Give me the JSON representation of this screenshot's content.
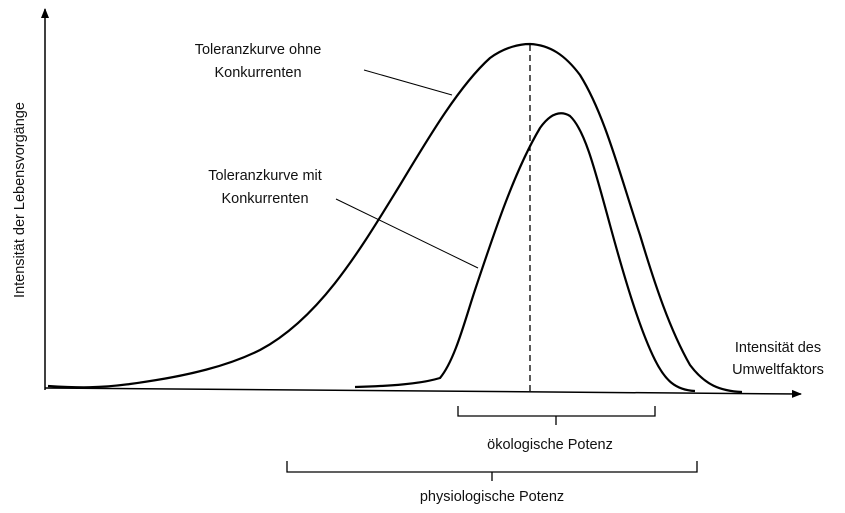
{
  "y_axis": {
    "label": "Intensität der Lebensvorgänge"
  },
  "x_axis": {
    "label": [
      "Intensität des",
      "Umweltfaktors"
    ]
  },
  "curves": [
    {
      "label": [
        "Toleranzkurve ohne",
        "Konkurrenten"
      ]
    },
    {
      "label": [
        "Toleranzkurve mit",
        "Konkurrenten"
      ]
    }
  ],
  "ranges": [
    {
      "label": "ökologische Potenz"
    },
    {
      "label": "physiologische Potenz"
    }
  ]
}
